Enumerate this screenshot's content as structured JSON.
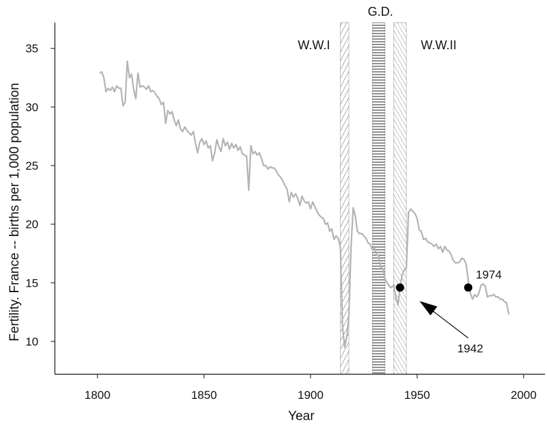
{
  "chart_data": {
    "type": "line",
    "title": "",
    "xlabel": "Year",
    "ylabel": "Fertility. France -- births per 1,000 population",
    "xlim": [
      1780,
      2010
    ],
    "ylim": [
      7.2,
      37.2
    ],
    "xticks": [
      1800,
      1850,
      1900,
      1950,
      2000
    ],
    "yticks": [
      10,
      15,
      20,
      25,
      30,
      35
    ],
    "grid": false,
    "legend": "none",
    "line_color": "#b3b3b3",
    "series": [
      {
        "x": [
          1801,
          1802,
          1803,
          1804,
          1805,
          1806,
          1807,
          1808,
          1809,
          1810,
          1811,
          1812,
          1813,
          1814,
          1815,
          1816,
          1817,
          1818,
          1819,
          1820,
          1821,
          1822,
          1823,
          1824,
          1825,
          1826,
          1827,
          1828,
          1829,
          1830,
          1831,
          1832,
          1833,
          1834,
          1835,
          1836,
          1837,
          1838,
          1839,
          1840,
          1841,
          1842,
          1843,
          1844,
          1845,
          1846,
          1847,
          1848,
          1849,
          1850,
          1851,
          1852,
          1853,
          1854,
          1855,
          1856,
          1857,
          1858,
          1859,
          1860,
          1861,
          1862,
          1863,
          1864,
          1865,
          1866,
          1867,
          1868,
          1869,
          1870,
          1871,
          1872,
          1873,
          1874,
          1875,
          1876,
          1877,
          1878,
          1879,
          1880,
          1881,
          1882,
          1883,
          1884,
          1885,
          1886,
          1887,
          1888,
          1889,
          1890,
          1891,
          1892,
          1893,
          1894,
          1895,
          1896,
          1897,
          1898,
          1899,
          1900,
          1901,
          1902,
          1903,
          1904,
          1905,
          1906,
          1907,
          1908,
          1909,
          1910,
          1911,
          1912,
          1913,
          1914,
          1915,
          1916,
          1917,
          1918,
          1919,
          1920,
          1921,
          1922,
          1923,
          1924,
          1925,
          1926,
          1927,
          1928,
          1929,
          1930,
          1931,
          1932,
          1933,
          1934,
          1935,
          1936,
          1937,
          1938,
          1939,
          1940,
          1941,
          1942,
          1943,
          1944,
          1945,
          1946,
          1947,
          1948,
          1949,
          1950,
          1951,
          1952,
          1953,
          1954,
          1955,
          1956,
          1957,
          1958,
          1959,
          1960,
          1961,
          1962,
          1963,
          1964,
          1965,
          1966,
          1967,
          1968,
          1969,
          1970,
          1971,
          1972,
          1973,
          1974,
          1975,
          1976,
          1977,
          1978,
          1979,
          1980,
          1981,
          1982,
          1983,
          1984,
          1985,
          1986,
          1987,
          1988,
          1989,
          1990,
          1991,
          1992,
          1993
        ],
        "y": [
          32.9,
          33.0,
          32.5,
          31.3,
          31.6,
          31.4,
          31.7,
          31.3,
          31.8,
          31.6,
          31.6,
          30.1,
          30.4,
          33.9,
          32.5,
          32.8,
          31.5,
          30.7,
          32.9,
          31.7,
          31.8,
          31.7,
          31.5,
          31.8,
          31.3,
          31.4,
          31.2,
          30.9,
          30.7,
          30.2,
          30.4,
          28.6,
          29.7,
          29.4,
          29.6,
          28.9,
          28.4,
          28.9,
          28.1,
          27.9,
          28.3,
          28.0,
          27.8,
          27.6,
          27.9,
          26.9,
          26.1,
          27.0,
          27.3,
          26.8,
          27.1,
          26.5,
          26.7,
          25.4,
          26.1,
          27.2,
          26.6,
          26.2,
          27.3,
          26.7,
          27.0,
          26.4,
          26.9,
          26.5,
          26.8,
          26.3,
          26.6,
          26.0,
          25.9,
          25.8,
          22.9,
          26.7,
          26.0,
          26.2,
          25.9,
          26.1,
          25.6,
          25.0,
          25.0,
          24.7,
          24.9,
          24.8,
          24.8,
          24.5,
          24.2,
          24.0,
          23.7,
          23.3,
          23.0,
          21.9,
          22.7,
          22.3,
          22.6,
          22.2,
          21.6,
          22.4,
          22.0,
          21.8,
          21.9,
          21.3,
          21.9,
          21.5,
          21.1,
          20.8,
          20.6,
          20.5,
          20.0,
          20.1,
          19.4,
          19.6,
          18.7,
          19.0,
          18.8,
          18.0,
          11.3,
          9.5,
          10.4,
          12.2,
          18.0,
          21.4,
          20.7,
          19.4,
          19.2,
          19.2,
          19.0,
          18.8,
          18.4,
          18.3,
          17.8,
          18.0,
          17.4,
          17.3,
          16.3,
          16.2,
          15.3,
          15.0,
          14.7,
          14.6,
          14.8,
          13.8,
          13.1,
          14.5,
          15.7,
          16.1,
          16.3,
          21.0,
          21.3,
          21.1,
          20.9,
          20.5,
          19.5,
          19.4,
          18.7,
          18.8,
          18.5,
          18.4,
          18.3,
          18.1,
          18.3,
          17.9,
          18.1,
          17.6,
          18.1,
          17.8,
          17.7,
          17.4,
          16.9,
          16.7,
          16.7,
          16.8,
          17.1,
          17.0,
          16.6,
          15.2,
          14.1,
          13.6,
          14.0,
          13.8,
          14.1,
          14.8,
          14.9,
          14.7,
          13.8,
          13.9,
          13.9,
          14.0,
          13.8,
          13.8,
          13.6,
          13.6,
          13.4,
          13.3,
          12.3
        ]
      }
    ],
    "periods": [
      {
        "name": "W.W.I",
        "start": 1914,
        "end": 1918
      },
      {
        "name": "G.D.",
        "start": 1929,
        "end": 1935
      },
      {
        "name": "W.W.II",
        "start": 1939,
        "end": 1945
      }
    ],
    "markers": [
      {
        "label": "1942",
        "x": 1942,
        "y": 14.6
      },
      {
        "label": "1974",
        "x": 1974,
        "y": 14.6
      }
    ]
  }
}
